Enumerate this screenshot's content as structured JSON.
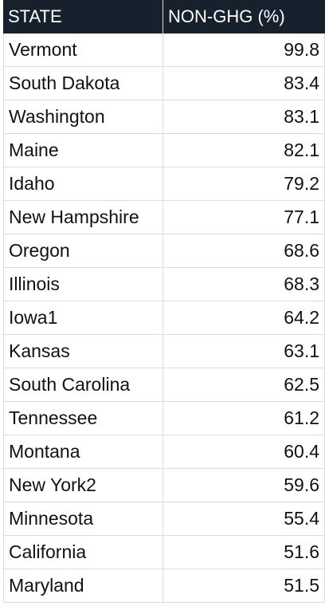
{
  "table": {
    "header": [
      "STATE",
      "NON-GHG (%)"
    ],
    "rows": [
      [
        "Vermont",
        "99.8"
      ],
      [
        "South Dakota",
        "83.4"
      ],
      [
        "Washington",
        "83.1"
      ],
      [
        "Maine",
        "82.1"
      ],
      [
        "Idaho",
        "79.2"
      ],
      [
        "New Hampshire",
        "77.1"
      ],
      [
        "Oregon",
        "68.6"
      ],
      [
        "Illinois",
        "68.3"
      ],
      [
        "Iowa1",
        "64.2"
      ],
      [
        "Kansas",
        "63.1"
      ],
      [
        "South Carolina",
        "62.5"
      ],
      [
        "Tennessee",
        "61.2"
      ],
      [
        "Montana",
        "60.4"
      ],
      [
        "New York2",
        "59.6"
      ],
      [
        "Minnesota",
        "55.4"
      ],
      [
        "California",
        "51.6"
      ],
      [
        "Maryland",
        "51.5"
      ]
    ]
  }
}
